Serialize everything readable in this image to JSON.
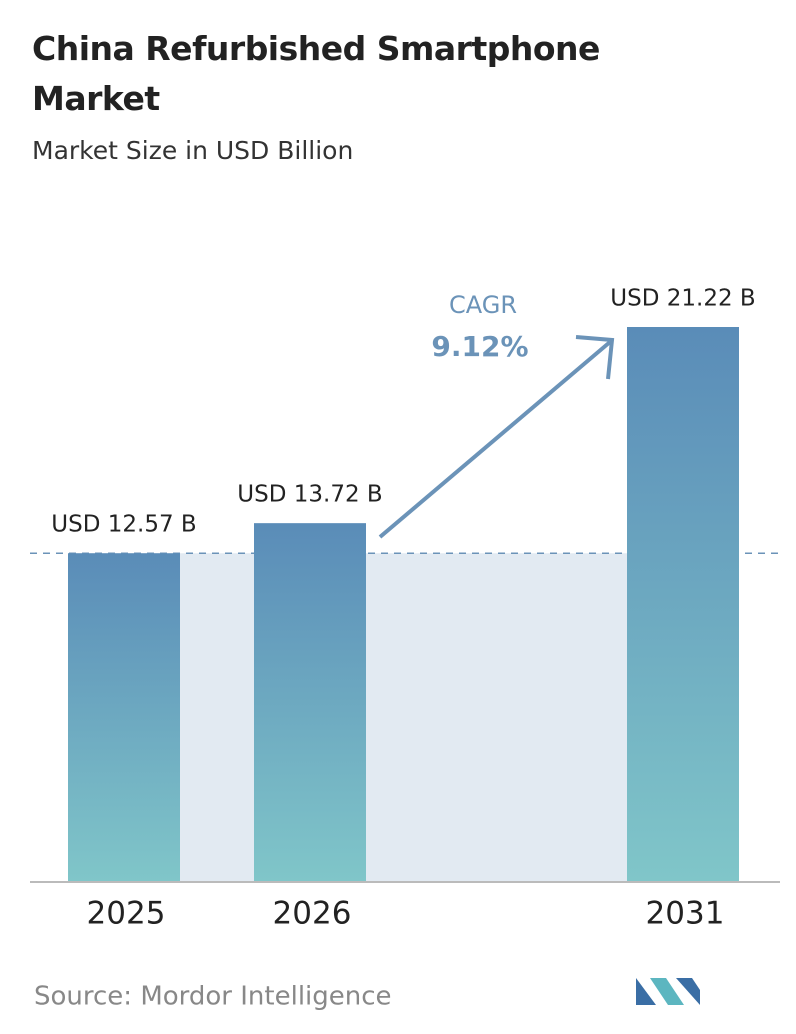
{
  "chart_data": {
    "type": "bar",
    "title": "China Refurbished Smartphone Market",
    "subtitle": "Market Size in USD Billion",
    "categories": [
      "2025",
      "2026",
      "2031"
    ],
    "values": [
      12.57,
      13.72,
      21.22
    ],
    "value_labels": [
      "USD 12.57 B",
      "USD 13.72 B",
      "USD 21.22 B"
    ],
    "annotation": {
      "label": "CAGR",
      "value": "9.12%"
    },
    "source": "Source:  Mordor Intelligence"
  }
}
